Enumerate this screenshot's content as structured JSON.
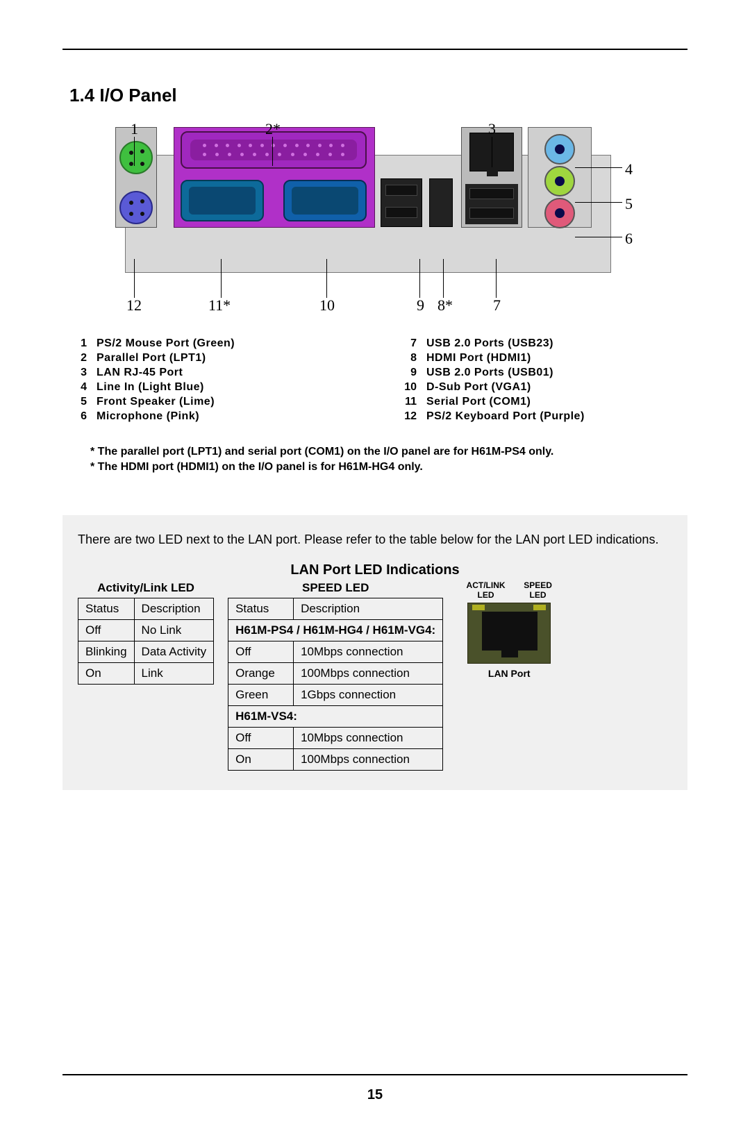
{
  "section_title": "1.4  I/O Panel",
  "callouts_top": [
    "1",
    "2*",
    "3",
    "4",
    "5",
    "6"
  ],
  "callouts_bottom": [
    "12",
    "11*",
    "10",
    "9",
    "8*",
    "7"
  ],
  "legend_left": [
    {
      "n": "1",
      "t": "PS/2  Mouse  Port  (Green)"
    },
    {
      "n": "2",
      "t": "Parallel  Port  (LPT1)"
    },
    {
      "n": "3",
      "t": "LAN  RJ-45  Port"
    },
    {
      "n": "4",
      "t": "Line  In  (Light  Blue)"
    },
    {
      "n": "5",
      "t": "Front  Speaker  (Lime)"
    },
    {
      "n": "6",
      "t": "Microphone  (Pink)"
    }
  ],
  "legend_right": [
    {
      "n": "7",
      "t": "USB 2.0  Ports  (USB23)"
    },
    {
      "n": "8",
      "t": "HDMI  Port  (HDMI1)"
    },
    {
      "n": "9",
      "t": "USB 2.0  Ports  (USB01)"
    },
    {
      "n": "10",
      "t": "D-Sub  Port  (VGA1)"
    },
    {
      "n": "11",
      "t": "Serial  Port  (COM1)"
    },
    {
      "n": "12",
      "t": "PS/2  Keyboard  Port  (Purple)"
    }
  ],
  "notes": [
    "* The parallel port (LPT1) and serial port (COM1) on the I/O panel are for H61M-PS4 only.",
    "* The HDMI port (HDMI1) on the I/O panel is for H61M-HG4 only."
  ],
  "led_intro": "There are two LED next to the LAN port. Please refer to the table below for the LAN port LED indications.",
  "led_title": "LAN Port LED Indications",
  "activity_head": "Activity/Link LED",
  "speed_head": "SPEED LED",
  "col_status": "Status",
  "col_desc": "Description",
  "activity_rows": [
    {
      "s": "Off",
      "d": "No Link"
    },
    {
      "s": "Blinking",
      "d": "Data Activity"
    },
    {
      "s": "On",
      "d": "Link"
    }
  ],
  "speed_sub1": "H61M-PS4 / H61M-HG4 / H61M-VG4:",
  "speed_rows1": [
    {
      "s": "Off",
      "d": "10Mbps connection"
    },
    {
      "s": "Orange",
      "d": "100Mbps connection"
    },
    {
      "s": "Green",
      "d": "1Gbps connection"
    }
  ],
  "speed_sub2": "H61M-VS4:",
  "speed_rows2": [
    {
      "s": "Off",
      "d": "10Mbps connection"
    },
    {
      "s": "On",
      "d": "100Mbps connection"
    }
  ],
  "lan_label_left": "ACT/LINK LED",
  "lan_label_right": "SPEED LED",
  "lan_caption": "LAN Port",
  "page_number": "15"
}
